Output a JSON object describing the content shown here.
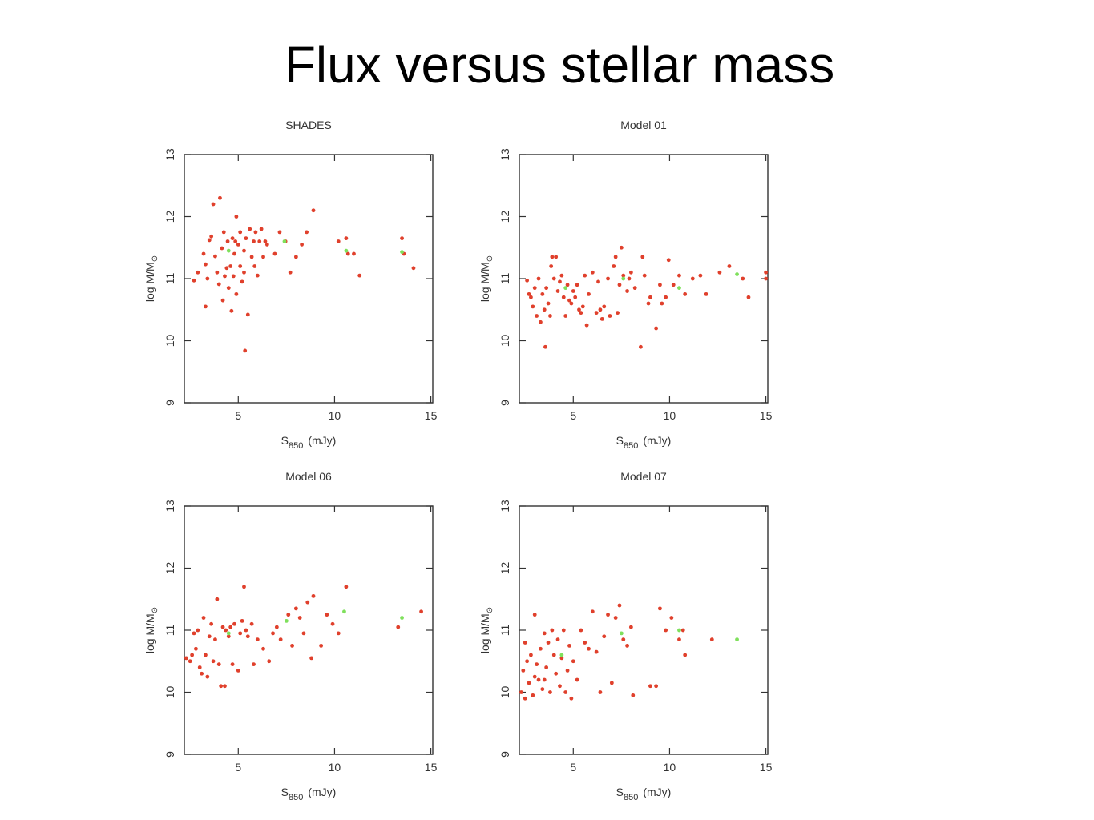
{
  "title": "Flux versus stellar mass",
  "chart_data": [
    {
      "type": "scatter",
      "title": "SHADES",
      "xlabel": "S",
      "xlabel_sub": "850",
      "xlabel_unit": "(mJy)",
      "ylabel": "log M/M",
      "ylabel_sub": "⊙",
      "xlim": [
        2.2,
        15.1
      ],
      "xticks": [
        5,
        10,
        15
      ],
      "ylim": [
        9,
        13
      ],
      "yticks": [
        9,
        10,
        11,
        12,
        13
      ],
      "series": [
        {
          "color": "#e0402c",
          "x": [
            2.7,
            3.3,
            3.2,
            3.3,
            3.5,
            3.6,
            3.7,
            4.05,
            3.8,
            3.9,
            4.0,
            4.15,
            4.25,
            4.3,
            4.4,
            4.45,
            4.5,
            4.6,
            4.65,
            4.7,
            4.75,
            4.8,
            4.85,
            4.9,
            5.0,
            5.1,
            5.1,
            5.2,
            5.3,
            5.35,
            5.4,
            5.5,
            5.6,
            5.7,
            5.8,
            5.85,
            5.9,
            6.0,
            6.1,
            6.2,
            6.3,
            6.4,
            6.5,
            6.9,
            7.15,
            7.45,
            7.7,
            8.0,
            8.3,
            8.55,
            8.9,
            10.2,
            10.6,
            10.7,
            11.0,
            11.3,
            13.5,
            13.6,
            14.1,
            2.9,
            3.4,
            4.2,
            4.9,
            5.3
          ],
          "values": [
            10.97,
            10.55,
            11.4,
            11.23,
            11.62,
            11.68,
            12.2,
            12.3,
            11.36,
            11.1,
            10.91,
            11.49,
            11.75,
            11.04,
            11.17,
            11.6,
            10.85,
            11.2,
            10.48,
            11.65,
            11.04,
            11.4,
            11.6,
            12.0,
            11.55,
            11.2,
            11.75,
            10.95,
            11.45,
            9.84,
            11.65,
            10.42,
            11.8,
            11.35,
            11.6,
            11.2,
            11.75,
            11.05,
            11.6,
            11.8,
            11.35,
            11.6,
            11.55,
            11.4,
            11.75,
            11.6,
            11.1,
            11.35,
            11.55,
            11.75,
            12.1,
            11.6,
            11.65,
            11.4,
            11.4,
            11.05,
            11.65,
            11.4,
            11.17,
            11.1,
            11.0,
            10.65,
            10.75,
            11.1
          ]
        },
        {
          "color": "#7fe05c",
          "x": [
            4.5,
            7.4,
            10.6,
            13.5
          ],
          "values": [
            11.45,
            11.6,
            11.45,
            11.43
          ]
        }
      ]
    },
    {
      "type": "scatter",
      "title": "Model 01",
      "xlabel": "S",
      "xlabel_sub": "850",
      "xlabel_unit": "(mJy)",
      "ylabel": "log M/M",
      "ylabel_sub": "⊙",
      "xlim": [
        2.2,
        15.1
      ],
      "xticks": [
        5,
        10,
        15
      ],
      "ylim": [
        9,
        13
      ],
      "yticks": [
        9,
        10,
        11,
        12,
        13
      ],
      "series": [
        {
          "color": "#e0402c",
          "x": [
            2.6,
            2.7,
            2.8,
            2.9,
            3.0,
            3.1,
            3.2,
            3.3,
            3.4,
            3.5,
            3.6,
            3.7,
            3.55,
            3.8,
            3.85,
            3.9,
            4.0,
            4.1,
            4.2,
            4.3,
            4.4,
            4.5,
            4.6,
            4.7,
            4.8,
            4.9,
            5.0,
            5.1,
            5.2,
            5.3,
            5.4,
            5.5,
            5.6,
            5.7,
            5.8,
            6.0,
            6.2,
            6.3,
            6.4,
            6.5,
            6.6,
            6.8,
            6.9,
            7.1,
            7.2,
            7.3,
            7.4,
            7.5,
            7.6,
            7.8,
            7.9,
            8.0,
            8.2,
            8.5,
            8.6,
            8.7,
            8.9,
            9.0,
            9.3,
            9.5,
            9.6,
            9.8,
            9.95,
            10.2,
            10.5,
            10.8,
            11.2,
            11.6,
            11.9,
            12.6,
            13.1,
            13.8,
            14.1,
            15.0,
            15.0
          ],
          "values": [
            10.97,
            10.75,
            10.7,
            10.55,
            10.85,
            10.4,
            11.0,
            10.3,
            10.75,
            10.5,
            10.85,
            10.6,
            9.9,
            10.4,
            11.2,
            11.35,
            11.0,
            11.35,
            10.8,
            10.95,
            11.05,
            10.7,
            10.4,
            10.9,
            10.65,
            10.6,
            10.8,
            10.7,
            10.9,
            10.5,
            10.45,
            10.55,
            11.05,
            10.25,
            10.75,
            11.1,
            10.45,
            10.95,
            10.5,
            10.35,
            10.55,
            11.0,
            10.4,
            11.2,
            11.35,
            10.45,
            10.9,
            11.5,
            11.05,
            10.8,
            11.0,
            11.1,
            10.85,
            9.9,
            11.35,
            11.05,
            10.6,
            10.7,
            10.2,
            10.9,
            10.6,
            10.7,
            11.3,
            10.9,
            11.05,
            10.75,
            11.0,
            11.05,
            10.75,
            11.1,
            11.2,
            11.0,
            10.7,
            11.1,
            11.0
          ]
        },
        {
          "color": "#7fe05c",
          "x": [
            4.6,
            7.6,
            10.5,
            13.5
          ],
          "values": [
            10.85,
            11.0,
            10.85,
            11.07
          ]
        }
      ]
    },
    {
      "type": "scatter",
      "title": "Model 06",
      "xlabel": "S",
      "xlabel_sub": "850",
      "xlabel_unit": "(mJy)",
      "ylabel": "log M/M",
      "ylabel_sub": "⊙",
      "xlim": [
        2.2,
        15.1
      ],
      "xticks": [
        5,
        10,
        15
      ],
      "ylim": [
        9,
        13
      ],
      "yticks": [
        9,
        10,
        11,
        12,
        13
      ],
      "series": [
        {
          "color": "#e0402c",
          "x": [
            2.3,
            2.5,
            2.6,
            2.7,
            2.8,
            2.9,
            3.0,
            3.1,
            3.2,
            3.3,
            3.4,
            3.5,
            3.6,
            3.7,
            3.8,
            3.9,
            4.0,
            4.1,
            4.2,
            4.3,
            4.35,
            4.5,
            4.6,
            4.7,
            4.8,
            5.0,
            5.1,
            5.2,
            5.3,
            5.4,
            5.5,
            5.7,
            5.8,
            6.0,
            6.3,
            6.6,
            6.8,
            7.0,
            7.2,
            7.6,
            7.8,
            8.0,
            8.2,
            8.4,
            8.6,
            8.8,
            8.9,
            9.3,
            9.6,
            9.9,
            10.2,
            10.6,
            13.3,
            14.5
          ],
          "values": [
            10.55,
            10.5,
            10.6,
            10.95,
            10.7,
            11.0,
            10.4,
            10.3,
            11.2,
            10.6,
            10.25,
            10.9,
            11.1,
            10.5,
            10.85,
            11.5,
            10.45,
            10.1,
            11.05,
            10.1,
            11.0,
            10.9,
            11.05,
            10.45,
            11.1,
            10.35,
            10.95,
            11.15,
            11.7,
            11.0,
            10.9,
            11.1,
            10.45,
            10.85,
            10.7,
            10.5,
            10.95,
            11.05,
            10.85,
            11.25,
            10.75,
            11.35,
            11.2,
            10.95,
            11.45,
            10.55,
            11.55,
            10.75,
            11.25,
            11.1,
            10.95,
            11.7,
            11.05,
            11.3
          ]
        },
        {
          "color": "#7fe05c",
          "x": [
            4.5,
            7.5,
            10.5,
            13.5
          ],
          "values": [
            10.95,
            11.15,
            11.3,
            11.2
          ]
        }
      ]
    },
    {
      "type": "scatter",
      "title": "Model 07",
      "xlabel": "S",
      "xlabel_sub": "850",
      "xlabel_unit": "(mJy)",
      "ylabel": "log M/M",
      "ylabel_sub": "⊙",
      "xlim": [
        2.2,
        15.1
      ],
      "xticks": [
        5,
        10,
        15
      ],
      "ylim": [
        9,
        13
      ],
      "yticks": [
        9,
        10,
        11,
        12,
        13
      ],
      "series": [
        {
          "color": "#e0402c",
          "x": [
            2.3,
            2.4,
            2.5,
            2.5,
            2.6,
            2.7,
            2.8,
            2.9,
            3.0,
            3.0,
            3.1,
            3.2,
            3.3,
            3.4,
            3.5,
            3.5,
            3.6,
            3.7,
            3.8,
            3.9,
            4.0,
            4.1,
            4.2,
            4.3,
            4.4,
            4.5,
            4.6,
            4.7,
            4.8,
            4.9,
            5.0,
            5.2,
            5.4,
            5.6,
            5.8,
            6.0,
            6.2,
            6.4,
            6.6,
            6.8,
            7.0,
            7.2,
            7.4,
            7.6,
            7.8,
            8.0,
            8.1,
            9.0,
            9.3,
            9.5,
            9.8,
            10.1,
            10.5,
            10.7,
            10.8,
            12.2
          ],
          "values": [
            10.0,
            10.35,
            10.8,
            9.9,
            10.5,
            10.15,
            10.6,
            9.95,
            10.25,
            11.25,
            10.45,
            10.2,
            10.7,
            10.05,
            10.95,
            10.2,
            10.4,
            10.8,
            10.0,
            11.0,
            10.6,
            10.3,
            10.85,
            10.1,
            10.55,
            11.0,
            10.0,
            10.35,
            10.75,
            9.9,
            10.5,
            10.2,
            11.0,
            10.8,
            10.7,
            11.3,
            10.65,
            10.0,
            10.9,
            11.25,
            10.15,
            11.2,
            11.4,
            10.85,
            10.75,
            11.05,
            9.95,
            10.1,
            10.1,
            11.35,
            11.0,
            11.2,
            10.85,
            11.0,
            10.6,
            10.85
          ]
        },
        {
          "color": "#7fe05c",
          "x": [
            4.4,
            7.5,
            10.5,
            13.5
          ],
          "values": [
            10.6,
            10.95,
            11.0,
            10.85
          ]
        }
      ]
    }
  ]
}
